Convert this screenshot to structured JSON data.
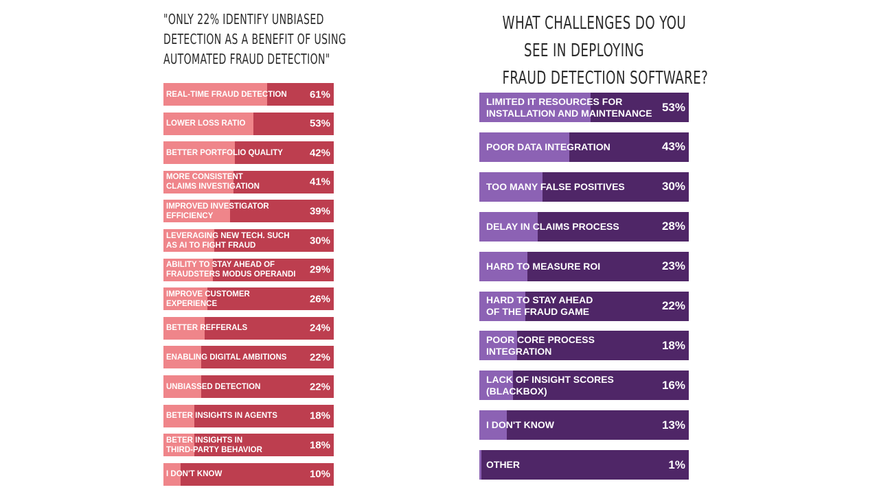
{
  "chart_data": [
    {
      "type": "bar",
      "orientation": "horizontal",
      "title": "\"Only 22% identify unbiased detection as a benefit of using automated fraud detection\"",
      "categories": [
        "Real-time fraud detection",
        "Lower loss ratio",
        "Better portfolio quality",
        "More consistent\nclaims investigation",
        "Improved investigator\nefficiency",
        "Leveraging new tech. such\nas AI to fight fraud",
        "Ability to stay ahead of\nfraudsters modus operandi",
        "Improve customer\nexperience",
        "Better refferals",
        "Enabling digital ambitions",
        "Unbiassed detection",
        "Beter insights in agents",
        "Beter insights in\nthird-party behavior",
        "I don't know"
      ],
      "values": [
        61,
        53,
        42,
        41,
        39,
        30,
        29,
        26,
        24,
        22,
        22,
        18,
        18,
        10
      ],
      "value_labels": [
        "61%",
        "53%",
        "42%",
        "41%",
        "39%",
        "30%",
        "29%",
        "26%",
        "24%",
        "22%",
        "22%",
        "18%",
        "18%",
        "10%"
      ],
      "xlim": [
        0,
        100
      ],
      "colors": {
        "fill": "#ef858a",
        "track": "#bd3e4f"
      }
    },
    {
      "type": "bar",
      "orientation": "horizontal",
      "title": "What challenges do you see in deploying fraud detection software?",
      "categories": [
        "Limited IT resources for\ninstallation and maintenance",
        "Poor data integration",
        "Too many false positives",
        "Delay in claims process",
        "Hard to measure ROI",
        "Hard to stay ahead\nof the fraud game",
        "Poor core process\nintegration",
        "Lack of insight scores\n(blackbox)",
        "I don't know",
        "Other"
      ],
      "values": [
        53,
        43,
        30,
        28,
        23,
        22,
        18,
        16,
        13,
        1
      ],
      "value_labels": [
        "53%",
        "43%",
        "30%",
        "28%",
        "23%",
        "22%",
        "18%",
        "16%",
        "13%",
        "1%"
      ],
      "xlim": [
        0,
        100
      ],
      "colors": {
        "fill": "#8c62b4",
        "track": "#4f2667"
      }
    }
  ]
}
